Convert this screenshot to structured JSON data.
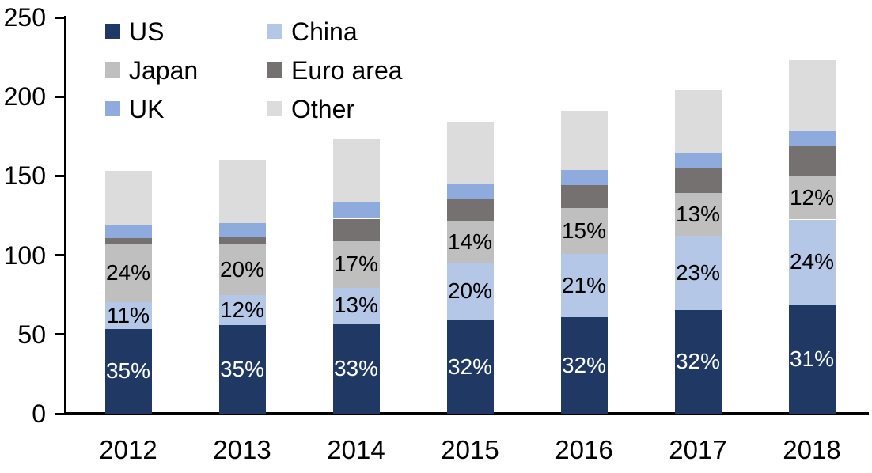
{
  "chart_data": {
    "type": "bar",
    "stacked": true,
    "title": "",
    "xlabel": "",
    "ylabel": "",
    "categories": [
      "2012",
      "2013",
      "2014",
      "2015",
      "2016",
      "2017",
      "2018"
    ],
    "series": [
      {
        "name": "US",
        "color": "#1F3864",
        "values": [
          53.5,
          56.0,
          57.0,
          59.0,
          61.0,
          65.5,
          69.0
        ],
        "labels": [
          "35%",
          "35%",
          "33%",
          "32%",
          "32%",
          "32%",
          "31%"
        ],
        "label_color": "#FFFFFF"
      },
      {
        "name": "China",
        "color": "#B4C7E7",
        "values": [
          17.0,
          19.0,
          22.5,
          36.5,
          40.0,
          47.0,
          53.5
        ],
        "labels": [
          "11%",
          "12%",
          "13%",
          "20%",
          "21%",
          "23%",
          "24%"
        ],
        "label_color": "#000000"
      },
      {
        "name": "Japan",
        "color": "#BFBFBF",
        "values": [
          36.5,
          32.0,
          29.5,
          26.0,
          28.5,
          26.5,
          27.0
        ],
        "labels": [
          "24%",
          "20%",
          "17%",
          "14%",
          "15%",
          "13%",
          "12%"
        ],
        "label_color": "#000000"
      },
      {
        "name": "Euro area",
        "color": "#767171",
        "values": [
          4.0,
          5.0,
          14.0,
          13.5,
          14.5,
          16.0,
          19.0
        ],
        "labels": null,
        "label_color": "#000000"
      },
      {
        "name": "UK",
        "color": "#8FAADC",
        "values": [
          8.0,
          8.5,
          10.0,
          9.5,
          9.5,
          9.0,
          9.5
        ],
        "labels": null,
        "label_color": "#000000"
      },
      {
        "name": "Other",
        "color": "#DCDCDC",
        "values": [
          34.0,
          39.5,
          40.0,
          39.5,
          37.5,
          40.0,
          45.0
        ],
        "labels": null,
        "label_color": "#000000"
      }
    ],
    "totals": [
      153,
      160,
      173,
      184,
      191,
      204,
      223
    ],
    "ylim": [
      0,
      250
    ],
    "yticks": [
      "0",
      "50",
      "100",
      "150",
      "200",
      "250"
    ],
    "grid": false,
    "legend_position": "top-left",
    "legend_columns": 2,
    "axis_color": "#000000",
    "text_color": "#000000",
    "background_color": "#FFFFFF"
  }
}
